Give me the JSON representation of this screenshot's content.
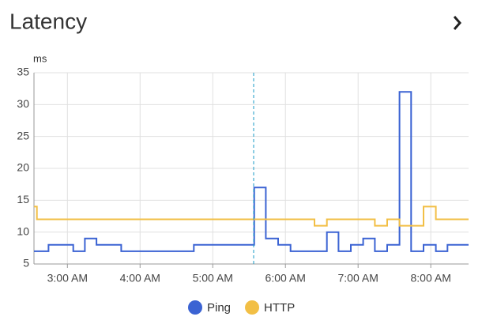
{
  "header": {
    "title": "Latency"
  },
  "chart_data": {
    "type": "step",
    "y_label": "ms",
    "xlim": [
      2.54,
      8.52
    ],
    "xticks": [
      {
        "value": 3,
        "label": "3:00 AM"
      },
      {
        "value": 4,
        "label": "4:00 AM"
      },
      {
        "value": 5,
        "label": "5:00 AM"
      },
      {
        "value": 6,
        "label": "6:00 AM"
      },
      {
        "value": 7,
        "label": "7:00 AM"
      },
      {
        "value": 8,
        "label": "8:00 AM"
      }
    ],
    "ylim": [
      5,
      35
    ],
    "yticks": [
      5,
      10,
      15,
      20,
      25,
      30,
      35
    ],
    "grid": true,
    "legend": "bottom",
    "series": [
      {
        "name": "Ping",
        "color": "#3b63d3",
        "x": [
          2.54,
          2.74,
          3.08,
          3.24,
          3.4,
          3.74,
          4.74,
          5.57,
          5.73,
          5.9,
          6.07,
          6.57,
          6.73,
          6.9,
          7.07,
          7.23,
          7.4,
          7.57,
          7.73,
          7.9,
          8.07,
          8.23,
          8.52
        ],
        "values": [
          7,
          8,
          7,
          9,
          8,
          7,
          8,
          17,
          9,
          8,
          7,
          10,
          7,
          8,
          9,
          7,
          8,
          32,
          7,
          8,
          7,
          8,
          8
        ]
      },
      {
        "name": "HTTP",
        "color": "#f2bf45",
        "x": [
          2.54,
          2.58,
          6.4,
          6.57,
          7.23,
          7.4,
          7.57,
          7.9,
          8.07,
          8.52
        ],
        "values": [
          14,
          12,
          11,
          12,
          11,
          12,
          11,
          14,
          12,
          12
        ]
      }
    ]
  }
}
